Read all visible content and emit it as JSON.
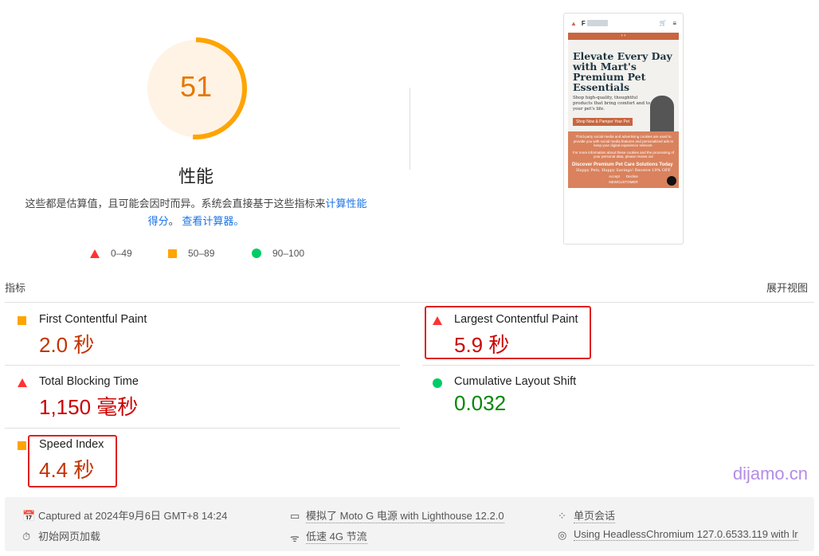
{
  "performance": {
    "score": "51",
    "score_fraction": 0.51,
    "title": "性能",
    "description_prefix": "这些都是估算值，且可能会因时而异。系统会直接基于这些指标来",
    "description_link1": "计算性能得分",
    "description_mid": "。",
    "description_link2": "查看计算器。",
    "legend": [
      {
        "shape": "triangle",
        "range": "0–49",
        "color": "#ff3333"
      },
      {
        "shape": "square",
        "range": "50–89",
        "color": "#ffa400"
      },
      {
        "shape": "circle",
        "range": "90–100",
        "color": "#00cc66"
      }
    ]
  },
  "screenshot": {
    "brand": "F",
    "heading": "Elevate Every Day with  Mart's Premium Pet Essentials",
    "subtext": "Shop high-quality, thoughtful products that bring comfort and to your pet's life.",
    "cta": "Shop Now & Pamper Your Pet",
    "cookie_text": "Third-party social media and advertising cookies are used to provide you with social media features and personalized ads to keep your digital experience relevant.",
    "cookie_text2": "For more information about these cookies and the processing of your personal data, please review our",
    "discover": "Discover Premium Pet Care Solutions Today",
    "promo": "Happy Pets, Happy Savings! Receive 10% OFF",
    "accept": "Accept",
    "decline": "Decline",
    "code": "NEWCUSTOMER"
  },
  "metrics": {
    "header": "指标",
    "expand": "展开视图",
    "items": [
      {
        "label": "First Contentful Paint",
        "value": "2.0 秒",
        "status": "average"
      },
      {
        "label": "Largest Contentful Paint",
        "value": "5.9 秒",
        "status": "fail"
      },
      {
        "label": "Total Blocking Time",
        "value": "1,150 毫秒",
        "status": "fail"
      },
      {
        "label": "Cumulative Layout Shift",
        "value": "0.032",
        "status": "pass"
      },
      {
        "label": "Speed Index",
        "value": "4.4 秒",
        "status": "average"
      }
    ]
  },
  "footer": {
    "captured": "Captured at 2024年9月6日 GMT+8 14:24",
    "initial_load": "初始网页加载",
    "emulated": "模拟了 Moto G 电源 with Lighthouse 12.2.0",
    "throttling": "低速 4G 节流",
    "session": "单页会话",
    "browser": "Using HeadlessChromium 127.0.6533.119 with lr"
  },
  "watermark": "dijamo.cn",
  "colors": {
    "fail": "#cc0000",
    "average": "#c33300",
    "pass": "#008800",
    "gauge": "#ffa400",
    "gauge_bg": "#fff3e6"
  }
}
